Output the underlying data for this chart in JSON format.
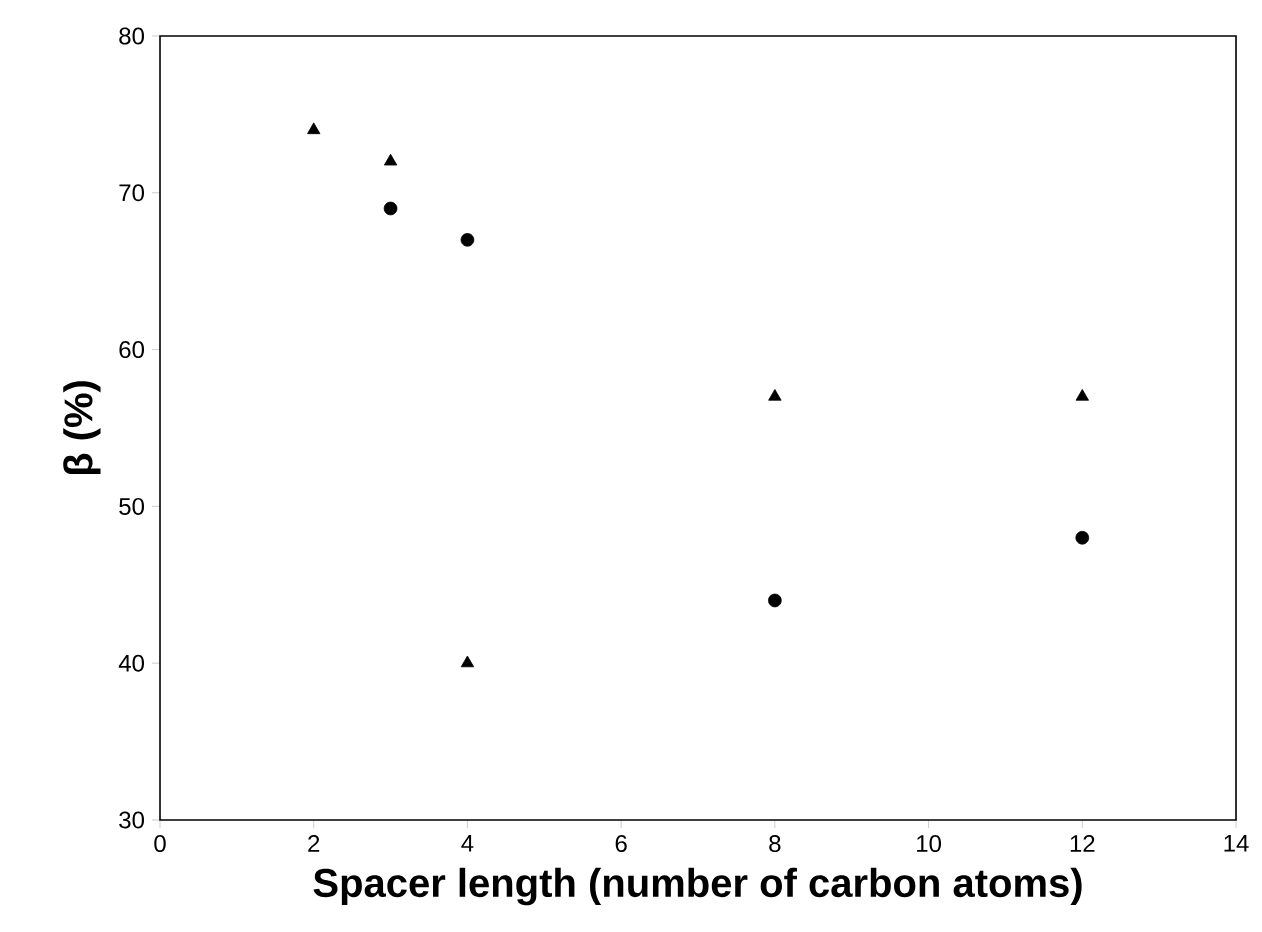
{
  "chart_data": {
    "type": "scatter",
    "xlabel": "Spacer length (number of carbon atoms)",
    "ylabel": "β (%)",
    "xlim": [
      0,
      14
    ],
    "ylim": [
      30,
      80
    ],
    "xticks": [
      0,
      2,
      4,
      6,
      8,
      10,
      12,
      14
    ],
    "yticks": [
      30,
      40,
      50,
      60,
      70,
      80
    ],
    "series": [
      {
        "color": "#000000",
        "marker": "triangle",
        "x": [
          2,
          3,
          4,
          8,
          12
        ],
        "values": [
          74,
          72,
          40,
          57,
          57
        ]
      },
      {
        "color": "#000000",
        "marker": "circle",
        "x": [
          3,
          4,
          8,
          12
        ],
        "values": [
          69,
          67,
          44,
          48
        ]
      }
    ]
  }
}
